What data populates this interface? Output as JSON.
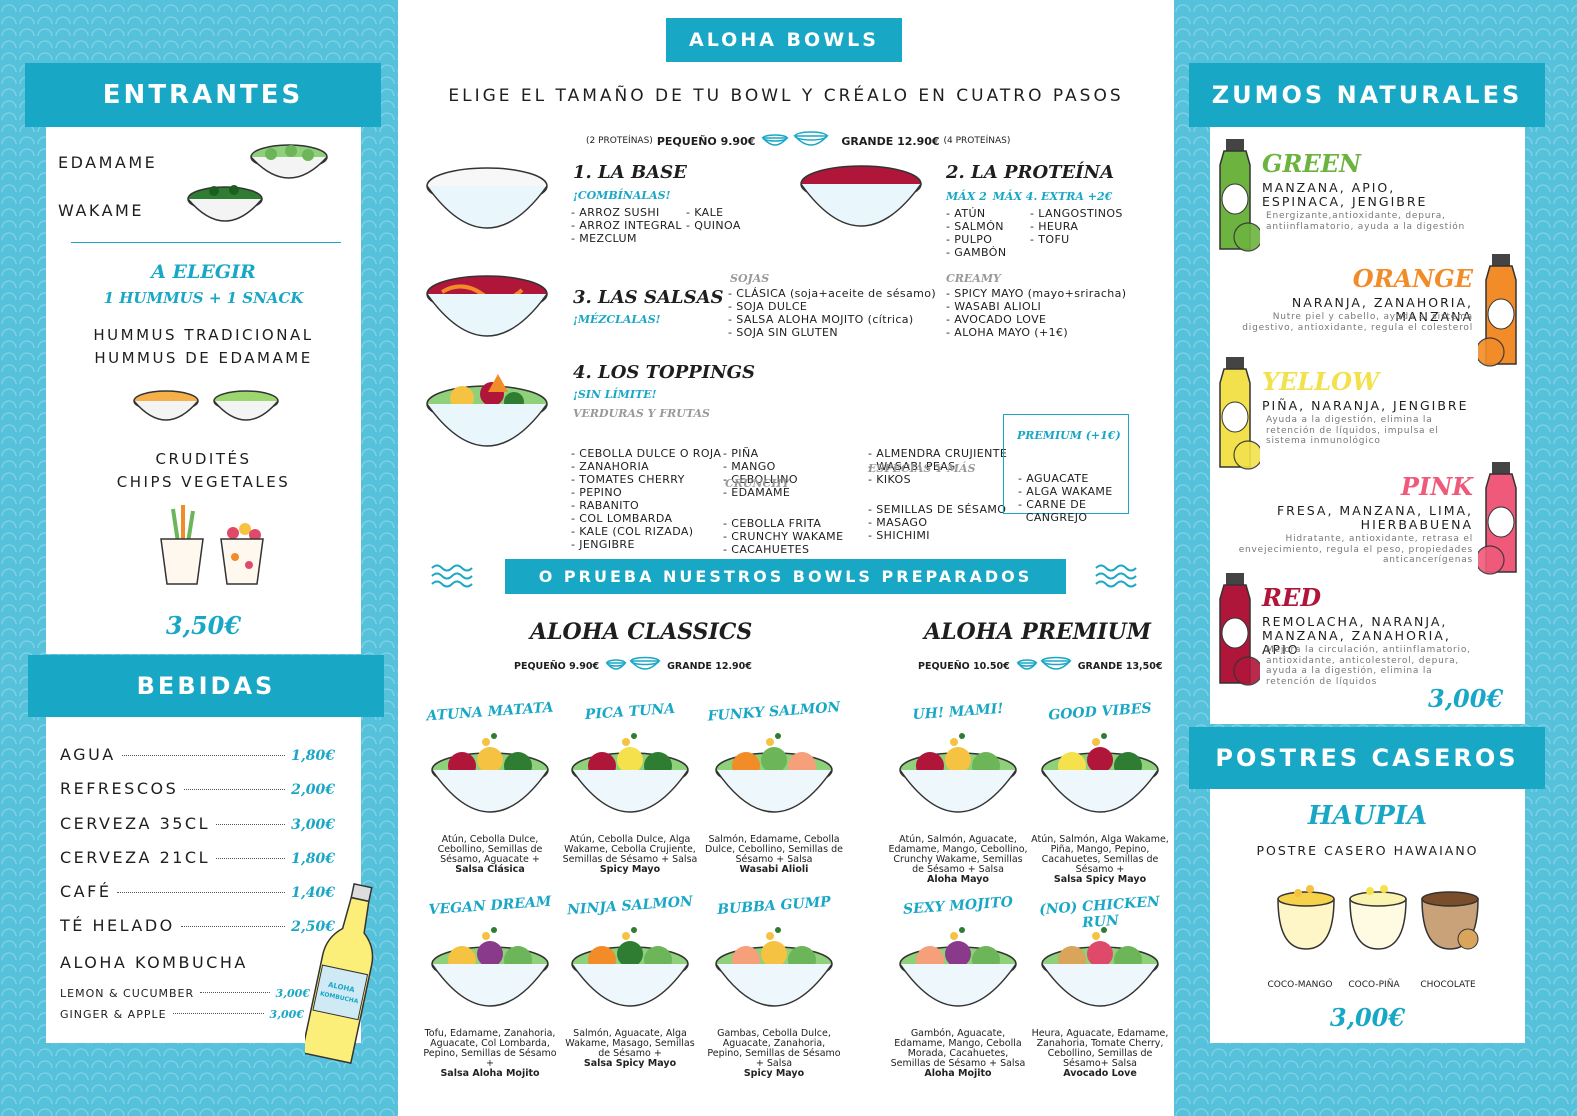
{
  "entrantes": {
    "title": "ENTRANTES",
    "items": [
      "EDAMAME",
      "WAKAME"
    ],
    "a_elegir": "A ELEGIR",
    "combo": "1 HUMMUS + 1 SNACK",
    "hummus": [
      "HUMMUS TRADICIONAL",
      "HUMMUS DE EDAMAME"
    ],
    "snacks": [
      "CRUDITÉS",
      "CHIPS VEGETALES"
    ],
    "price": "3,50€"
  },
  "bebidas": {
    "title": "BEBIDAS",
    "items": [
      {
        "name": "AGUA",
        "price": "1,80€"
      },
      {
        "name": "REFRESCOS",
        "price": "2,00€"
      },
      {
        "name": "CERVEZA 35CL",
        "price": "3,00€"
      },
      {
        "name": "CERVEZA 21CL",
        "price": "1,80€"
      },
      {
        "name": "CAFÉ",
        "price": "1,40€"
      },
      {
        "name": "TÉ HELADO",
        "price": "2,50€"
      }
    ],
    "kombucha": "ALOHA KOMBUCHA",
    "kombucha_items": [
      {
        "name": "LEMON & CUCUMBER",
        "price": "3,00€"
      },
      {
        "name": "GINGER & APPLE",
        "price": "3,00€"
      }
    ],
    "bottle_label": "ALOHA KOMBUCHA"
  },
  "bowls": {
    "header": "ALOHA BOWLS",
    "subtitle": "ELIGE EL TAMAÑO DE TU BOWL Y CRÉALO EN CUATRO PASOS",
    "size_small_note": "(2 PROTEÍNAS)",
    "size_small": "PEQUEÑO 9.90€",
    "size_large": "GRANDE 12.90€",
    "size_large_note": "(4 PROTEÍNAS)",
    "step1": {
      "title": "1. LA BASE",
      "sub": "¡COMBÍNALAS!",
      "col1": [
        "- ARROZ SUSHI",
        "- ARROZ INTEGRAL",
        "- MEZCLUM"
      ],
      "col2": [
        "- KALE",
        "- QUINOA"
      ]
    },
    "step2": {
      "title": "2. LA PROTEÍNA",
      "max2": "MÁX 2",
      "max4": "MÁX 4. EXTRA +2€",
      "col1": [
        "- ATÚN",
        "- SALMÓN",
        "- PULPO",
        "- GAMBÓN"
      ],
      "col2": [
        "- LANGOSTINOS",
        "- HEURA",
        "- TOFU"
      ]
    },
    "step3": {
      "title": "3. LAS SALSAS",
      "sub": "¡MÉZCLALAS!",
      "soja_title": "SOJAS",
      "soja": [
        "- CLÁSICA (soja+aceite de sésamo)",
        "- SOJA DULCE",
        "- SALSA ALOHA MOJITO (cítrica)",
        "- SOJA SIN GLUTEN"
      ],
      "creamy_title": "CREAMY",
      "creamy": [
        "- SPICY MAYO (mayo+sriracha)",
        "- WASABI ALIOLI",
        "- AVOCADO LOVE",
        "- ALOHA MAYO (+1€)"
      ]
    },
    "step4": {
      "title": "4. LOS TOPPINGS",
      "sub": "¡SIN LÍMITE!",
      "verduras_title": "VERDURAS Y FRUTAS",
      "verduras": [
        "- CEBOLLA DULCE O ROJA",
        "- ZANAHORIA",
        "- TOMATES CHERRY",
        "- PEPINO",
        "- RABANITO",
        "- COL LOMBARDA",
        "- KALE (COL RIZADA)",
        "- JENGIBRE"
      ],
      "frutas": [
        "- PIÑA",
        "- MANGO",
        "- CEBOLLINO",
        "- EDAMAME"
      ],
      "crunchy_title": "CRUNCHY",
      "crunchy": [
        "- CEBOLLA FRITA",
        "- CRUNCHY WAKAME",
        "- CACAHUETES"
      ],
      "extra": [
        "- ALMENDRA CRUJIENTE",
        "- WASABI PEAS",
        "- KIKOS"
      ],
      "especias_title": "ESPECIAS Y MÁS",
      "especias": [
        "- SEMILLAS DE SÉSAMO",
        "- MASAGO",
        "- SHICHIMI"
      ],
      "premium_title": "PREMIUM (+1€)",
      "premium": [
        "- AGUACATE",
        "- ALGA WAKAME",
        "- CARNE DE",
        "  CANGREJO"
      ]
    },
    "prepared_banner": "O PRUEBA NUESTROS BOWLS PREPARADOS",
    "classics": {
      "title": "ALOHA CLASSICS",
      "small": "PEQUEÑO 9.90€",
      "large": "GRANDE 12.90€"
    },
    "premium": {
      "title": "ALOHA PREMIUM",
      "small": "PEQUEÑO 10.50€",
      "large": "GRANDE 13,50€"
    },
    "dishes": [
      {
        "name": "ATUNA MATATA",
        "desc": "Atún, Cebolla Dulce, Cebollino, Semillas de Sésamo, Aguacate +",
        "sauce": "Salsa Clásica"
      },
      {
        "name": "PICA TUNA",
        "desc": "Atún, Cebolla Dulce, Alga Wakame, Cebolla Crujiente, Semillas de Sésamo + Salsa",
        "sauce": "Spicy Mayo"
      },
      {
        "name": "FUNKY SALMON",
        "desc": "Salmón, Edamame, Cebolla Dulce, Cebollino, Semillas de Sésamo + Salsa",
        "sauce": "Wasabi Alioli"
      },
      {
        "name": "UH! MAMI!",
        "desc": "Atún, Salmón, Aguacate, Edamame, Mango, Cebollino, Crunchy Wakame, Semillas de Sésamo + Salsa",
        "sauce": "Aloha Mayo"
      },
      {
        "name": "GOOD VIBES",
        "desc": "Atún, Salmón, Alga Wakame, Piña, Mango, Pepino, Cacahuetes, Semillas de Sésamo +",
        "sauce": "Salsa Spicy Mayo"
      },
      {
        "name": "VEGAN DREAM",
        "desc": "Tofu, Edamame, Zanahoria, Aguacate, Col Lombarda, Pepino, Semillas de Sésamo +",
        "sauce": "Salsa Aloha Mojito"
      },
      {
        "name": "NINJA SALMON",
        "desc": "Salmón, Aguacate, Alga Wakame, Masago, Semillas de Sésamo +",
        "sauce": "Salsa Spicy Mayo"
      },
      {
        "name": "BUBBA GUMP",
        "desc": "Gambas, Cebolla Dulce, Aguacate, Zanahoria, Pepino, Semillas de Sésamo + Salsa",
        "sauce": "Spicy Mayo"
      },
      {
        "name": "SEXY MOJITO",
        "desc": "Gambón, Aguacate, Edamame, Mango, Cebolla Morada, Cacahuetes, Semillas de Sésamo + Salsa",
        "sauce": "Aloha Mojito"
      },
      {
        "name": "(NO) CHICKEN RUN",
        "desc": "Heura, Aguacate, Edamame, Zanahoria, Tomate Cherry, Cebollino, Semillas de Sésamo+ Salsa",
        "sauce": "Avocado Love"
      }
    ]
  },
  "zumos": {
    "title": "ZUMOS NATURALES",
    "items": [
      {
        "name": "GREEN",
        "color": "#6db33f",
        "ing": "MANZANA, APIO, ESPINACA, JENGIBRE",
        "desc": "Energizante,antioxidante, depura, antiinflamatorio, ayuda a la digestión"
      },
      {
        "name": "ORANGE",
        "color": "#f28c28",
        "ing": "NARANJA, ZANAHORIA, MANZANA",
        "desc": "Nutre piel y cabello, ayuda al sistema digestivo, antioxidante, regula el colesterol"
      },
      {
        "name": "YELLOW",
        "color": "#f2e14c",
        "ing": "PIÑA, NARANJA, JENGIBRE",
        "desc": "Ayuda a la digestión, elimina la retención de líquidos, impulsa el sistema inmunológico"
      },
      {
        "name": "PINK",
        "color": "#ef5a7a",
        "ing": "FRESA, MANZANA, LIMA, HIERBABUENA",
        "desc": "Hidratante, antioxidante, retrasa el envejecimiento, regula el peso, propiedades anticancerígenas"
      },
      {
        "name": "RED",
        "color": "#b0163a",
        "ing": "REMOLACHA, NARANJA, MANZANA, ZANAHORIA, APIO",
        "desc": "Mejora la circulación, antiinflamatorio, antioxidante, anticolesterol, depura, ayuda a la digestión, elimina la retención de líquidos"
      }
    ],
    "price": "3,00€"
  },
  "postres": {
    "title": "POSTRES CASEROS",
    "name": "HAUPIA",
    "desc": "POSTRE CASERO HAWAIANO",
    "flavors": [
      "COCO-MANGO",
      "COCO-PIÑA",
      "CHOCOLATE"
    ],
    "price": "3,00€"
  },
  "colors": {
    "teal": "#19a7c6",
    "background": "#55c1db"
  }
}
